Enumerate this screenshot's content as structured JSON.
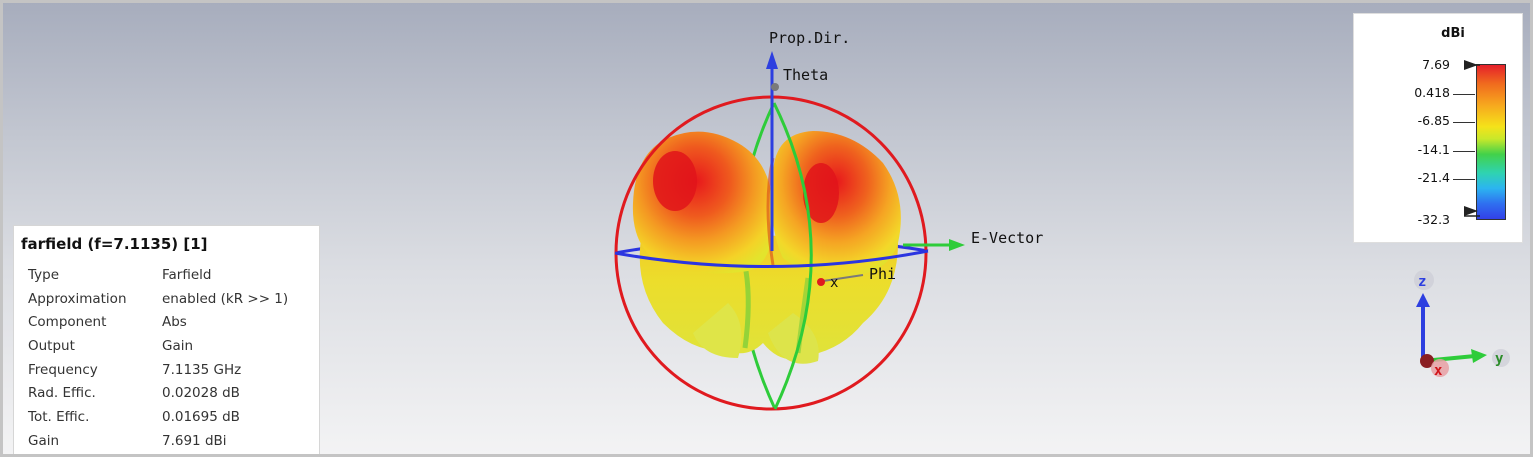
{
  "scene": {
    "axis_labels": {
      "prop_dir": "Prop.Dir.",
      "theta": "Theta",
      "e_vector": "E-Vector",
      "phi": "Phi",
      "x": "x"
    },
    "triad": {
      "z": "z",
      "y": "y",
      "x": "x"
    }
  },
  "info": {
    "title": "farfield (f=7.1135) [1]",
    "rows": [
      {
        "key": "Type",
        "value": "Farfield"
      },
      {
        "key": "Approximation",
        "value": "enabled (kR >> 1)"
      },
      {
        "key": "Component",
        "value": "Abs"
      },
      {
        "key": "Output",
        "value": "Gain"
      },
      {
        "key": "Frequency",
        "value": "7.1135 GHz"
      },
      {
        "key": "Rad. Effic.",
        "value": "0.02028 dB"
      },
      {
        "key": "Tot. Effic.",
        "value": "0.01695 dB"
      },
      {
        "key": "Gain",
        "value": "7.691 dBi"
      }
    ]
  },
  "legend": {
    "unit": "dBi",
    "ticks": [
      "7.69",
      "0.418",
      "-6.85",
      "-14.1",
      "-21.4",
      "-32.3"
    ],
    "colors": {
      "max": "#e5202a",
      "mid": "#f5e21a",
      "min": "#3240e8"
    }
  }
}
